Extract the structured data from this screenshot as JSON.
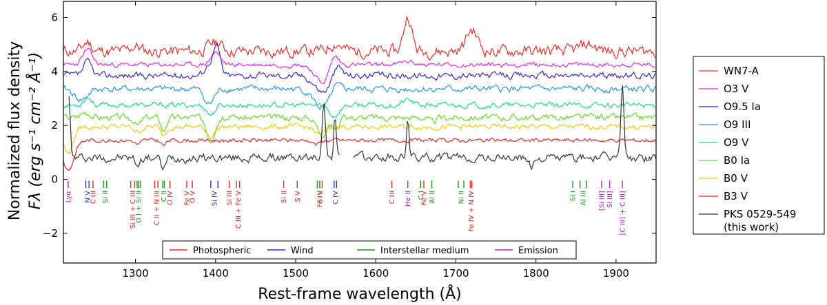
{
  "chart_data": {
    "type": "line",
    "xlabel": "Rest-frame wavelength (Å)",
    "ylabel_line1": "Normalized flux density",
    "ylabel_line2": "Fλ (erg s⁻¹ cm⁻² Å⁻¹)",
    "xlim": [
      1210,
      1950
    ],
    "ylim": [
      -3.1,
      6.6
    ],
    "xticks": [
      1300,
      1400,
      1500,
      1600,
      1700,
      1800,
      1900
    ],
    "yticks": [
      -2,
      0,
      2,
      4,
      6
    ],
    "series": [
      {
        "name": "WN7-A",
        "color": "#ee2b2b",
        "base": 4.75,
        "amp": 0.18,
        "seed": 11,
        "features": [
          [
            1240,
            0.35,
            5
          ],
          [
            1300,
            0.2,
            6
          ],
          [
            1400,
            0.35,
            8
          ],
          [
            1550,
            0.3,
            8
          ],
          [
            1640,
            1.3,
            5
          ],
          [
            1720,
            0.8,
            7
          ],
          [
            1865,
            0.25,
            10
          ]
        ]
      },
      {
        "name": "O3 V",
        "color": "#ee22ee",
        "base": 4.25,
        "amp": 0.07,
        "seed": 23,
        "features": [
          [
            1240,
            0.55,
            6
          ],
          [
            1400,
            0.45,
            6
          ],
          [
            1533,
            -0.65,
            9
          ],
          [
            1548,
            0.45,
            5
          ],
          [
            1640,
            0.12,
            8
          ]
        ]
      },
      {
        "name": "O9.5 Ia",
        "color": "#4422dd",
        "base": 3.85,
        "amp": 0.1,
        "seed": 37,
        "features": [
          [
            1240,
            0.5,
            5
          ],
          [
            1395,
            0.5,
            7
          ],
          [
            1402,
            0.8,
            4
          ],
          [
            1534,
            -0.6,
            10
          ],
          [
            1552,
            0.4,
            6
          ]
        ]
      },
      {
        "name": "O9 III",
        "color": "#2299ee",
        "base": 3.35,
        "amp": 0.1,
        "seed": 41,
        "features": [
          [
            1232,
            -0.4,
            8
          ],
          [
            1392,
            -0.55,
            6
          ],
          [
            1533,
            -0.7,
            10
          ],
          [
            1550,
            0.25,
            5
          ]
        ]
      },
      {
        "name": "O9 V",
        "color": "#11dd99",
        "base": 2.75,
        "amp": 0.08,
        "seed": 53,
        "features": [
          [
            1240,
            0.3,
            5
          ],
          [
            1394,
            -0.35,
            5
          ],
          [
            1548,
            -0.4,
            6
          ],
          [
            1640,
            0.2,
            6
          ]
        ]
      },
      {
        "name": "B0 Ia",
        "color": "#66dd22",
        "base": 2.3,
        "amp": 0.1,
        "seed": 67,
        "features": [
          [
            1238,
            0.2,
            6
          ],
          [
            1303,
            -0.3,
            4
          ],
          [
            1335,
            -0.5,
            3
          ],
          [
            1394,
            -0.8,
            5
          ],
          [
            1533,
            -0.6,
            6
          ],
          [
            1550,
            -0.4,
            5
          ],
          [
            1671,
            -0.2,
            4
          ]
        ]
      },
      {
        "name": "B0 V",
        "color": "#f0cc00",
        "base": 1.95,
        "amp": 0.08,
        "seed": 79,
        "features": [
          [
            1216,
            -1.0,
            6
          ],
          [
            1303,
            -0.2,
            4
          ],
          [
            1335,
            -0.3,
            3
          ],
          [
            1394,
            -0.35,
            5
          ],
          [
            1530,
            -0.3,
            6
          ]
        ]
      },
      {
        "name": "B3 V",
        "color": "#ee2222",
        "base": 1.45,
        "amp": 0.06,
        "seed": 83,
        "features": [
          [
            1216,
            -1.1,
            7
          ],
          [
            1303,
            -0.15,
            4
          ],
          [
            1335,
            -0.2,
            3
          ],
          [
            1526,
            -0.15,
            4
          ]
        ]
      },
      {
        "name": "PKS 0529-549 (this work)",
        "color": "#333333",
        "base": 0.8,
        "amp": 0.13,
        "seed": 97,
        "features": [
          [
            1217,
            2.4,
            1.5
          ],
          [
            1303,
            -0.25,
            3
          ],
          [
            1335,
            -0.4,
            3
          ],
          [
            1535,
            2.2,
            2
          ],
          [
            1549,
            1.6,
            1.5
          ],
          [
            1640,
            1.6,
            1.5
          ],
          [
            1794,
            -0.35,
            3
          ],
          [
            1908,
            2.6,
            2
          ]
        ]
      }
    ],
    "line_categories": [
      {
        "name": "Photospheric",
        "color": "#ee2222"
      },
      {
        "name": "Wind",
        "color": "#2233cc"
      },
      {
        "name": "Interstellar medium",
        "color": "#119911"
      },
      {
        "name": "Emission",
        "color": "#bb22bb"
      }
    ],
    "line_labels": [
      {
        "x": [
          1216
        ],
        "label": "Lyα",
        "category": "Emission"
      },
      {
        "x": [
          1238,
          1242
        ],
        "label": "N V",
        "category": "Wind"
      },
      {
        "x": [
          1247
        ],
        "label": "C III",
        "category": "Photospheric"
      },
      {
        "x": [
          1260,
          1264
        ],
        "label": "Si II",
        "category": "Interstellar medium"
      },
      {
        "x": [
          1294,
          1299
        ],
        "label": "Si III + C III",
        "category": "Photospheric"
      },
      {
        "x": [
          1302,
          1304,
          1306
        ],
        "label": "O I + Si II",
        "category": "Interstellar medium"
      },
      {
        "x": [
          1324,
          1328
        ],
        "label": "C II + N III",
        "category": "Photospheric"
      },
      {
        "x": [
          1334,
          1336
        ],
        "label": "C II",
        "category": "Interstellar medium"
      },
      {
        "x": [
          1343
        ],
        "label": "O IV",
        "category": "Photospheric"
      },
      {
        "x": [
          1364
        ],
        "label": "Fe V",
        "category": "Photospheric"
      },
      {
        "x": [
          1371
        ],
        "label": "O V",
        "category": "Photospheric"
      },
      {
        "x": [
          1394,
          1403
        ],
        "label": "Si IV",
        "category": "Wind"
      },
      {
        "x": [
          1417
        ],
        "label": "Si III",
        "category": "Photospheric"
      },
      {
        "x": [
          1426,
          1430
        ],
        "label": "C III + Fe V",
        "category": "Photospheric"
      },
      {
        "x": [
          1485
        ],
        "label": "Si II",
        "category": "Photospheric"
      },
      {
        "x": [
          1502
        ],
        "label": "S V",
        "category": "Photospheric"
      },
      {
        "x": [
          1527,
          1533
        ],
        "label": "Si II",
        "category": "Interstellar medium"
      },
      {
        "x": [
          1530
        ],
        "label": "Fe IV",
        "category": "Photospheric"
      },
      {
        "x": [
          1548,
          1551
        ],
        "label": "C IV",
        "category": "Wind"
      },
      {
        "x": [
          1620
        ],
        "label": "C III",
        "category": "Photospheric"
      },
      {
        "x": [
          1640
        ],
        "label": "He II",
        "category": "Emission"
      },
      {
        "x": [
          1656
        ],
        "label": "C I",
        "category": "Interstellar medium"
      },
      {
        "x": [
          1660
        ],
        "label": "Fe V",
        "category": "Photospheric"
      },
      {
        "x": [
          1670
        ],
        "label": "Al II",
        "category": "Interstellar medium"
      },
      {
        "x": [
          1703,
          1710
        ],
        "label": "Ni II",
        "category": "Interstellar medium"
      },
      {
        "x": [
          1718,
          1720
        ],
        "label": "Fe IV + N IV",
        "category": "Photospheric"
      },
      {
        "x": [
          1846
        ],
        "label": "Si I",
        "category": "Interstellar medium"
      },
      {
        "x": [
          1855,
          1863
        ],
        "label": "Al III",
        "category": "Interstellar medium"
      },
      {
        "x": [
          1882
        ],
        "label": "[Si III]",
        "category": "Emission"
      },
      {
        "x": [
          1892
        ],
        "label": "Si III]",
        "category": "Emission"
      },
      {
        "x": [
          1908
        ],
        "label": "[C III] + C III]",
        "category": "Emission"
      }
    ]
  }
}
